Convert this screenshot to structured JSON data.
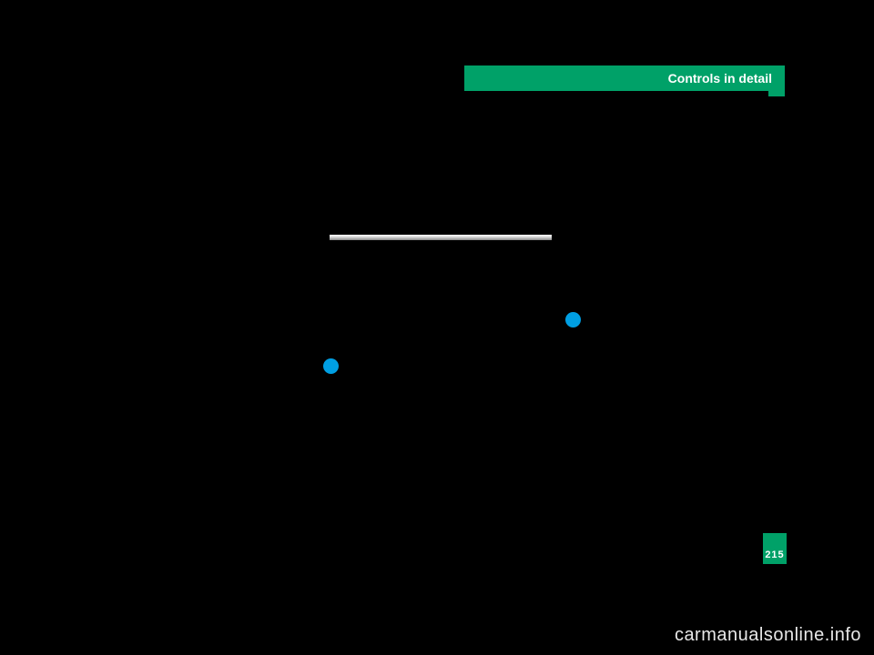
{
  "header": {
    "title": "Controls in detail",
    "bg_color": "#00a168",
    "text_color": "#ffffff",
    "font_size": 14
  },
  "divider": {
    "gradient_top": "#ffffff",
    "gradient_mid": "#dddddd",
    "gradient_bottom": "#888888"
  },
  "dots": {
    "color": "#009fe3",
    "count": 2
  },
  "page": {
    "number": "215",
    "bg_color": "#00a168",
    "text_color": "#ffffff",
    "font_size": 11
  },
  "watermark": {
    "text": "carmanualsonline.info",
    "color": "#e8e8e8",
    "font_size": 20
  },
  "background_color": "#000000"
}
